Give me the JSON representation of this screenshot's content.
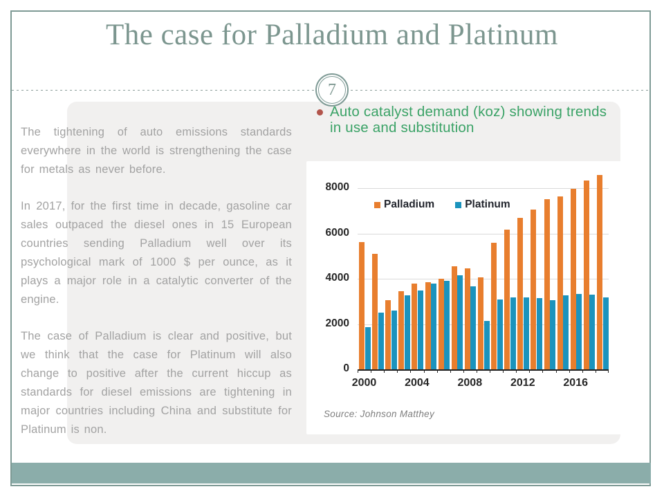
{
  "slide": {
    "title": "The case for Palladium and Platinum",
    "page_number": "7",
    "body_paragraphs": [
      "The tightening of auto emissions standards everywhere in the world is strengthening the case for metals as never before.",
      "In 2017, for the first time in decade, gasoline car sales outpaced the diesel ones in 15 European countries sending Palladium well over its psychological mark of 1000 $ per ounce, as it plays a major role in a catalytic converter of the engine.",
      "The case of Palladium is clear and positive, but we think that the case for Platinum will also change to positive after the current hiccup as standards for diesel emissions are tightening in major countries including China and substitute for Platinum is non."
    ],
    "bullet_text": "Auto catalyst demand (koz) showing trends in use and substitution",
    "source": "Source: Johnson Matthey"
  },
  "chart_data": {
    "type": "bar",
    "title": "Auto catalyst demand (koz)",
    "categories": [
      2000,
      2001,
      2002,
      2003,
      2004,
      2005,
      2006,
      2007,
      2008,
      2009,
      2010,
      2011,
      2012,
      2013,
      2014,
      2015,
      2016,
      2017,
      2018
    ],
    "series": [
      {
        "name": "Palladium",
        "color": "#e87e2e",
        "values": [
          5630,
          5090,
          3050,
          3450,
          3790,
          3860,
          4015,
          4545,
          4465,
          4050,
          5580,
          6155,
          6675,
          7065,
          7500,
          7650,
          7965,
          8350,
          8570
        ]
      },
      {
        "name": "Platinum",
        "color": "#1b93bd",
        "values": [
          1870,
          2520,
          2590,
          3270,
          3490,
          3800,
          3905,
          4145,
          3655,
          2140,
          3075,
          3185,
          3190,
          3135,
          3060,
          3255,
          3330,
          3290,
          3190
        ]
      }
    ],
    "ylim": [
      0,
      8000
    ],
    "yticks": [
      "0",
      "2000",
      "4000",
      "6000",
      "8000"
    ],
    "xtick_labels": [
      "2000",
      "2004",
      "2008",
      "2012",
      "2016"
    ],
    "xtick_indices": [
      0,
      4,
      8,
      12,
      16
    ],
    "grid": true,
    "legend_position": "top-left-inside"
  },
  "colors": {
    "frame_border": "#7e9a95",
    "title": "#7c968f",
    "card_bg": "#f1f0ef",
    "body_text": "#a2a2a2",
    "bullet_green": "#3aa266",
    "bullet_dot": "#b2544b",
    "palladium_orange": "#e87e2e",
    "platinum_blue": "#1b93bd",
    "gridline": "#dadada",
    "footer_teal": "#8badaa"
  }
}
